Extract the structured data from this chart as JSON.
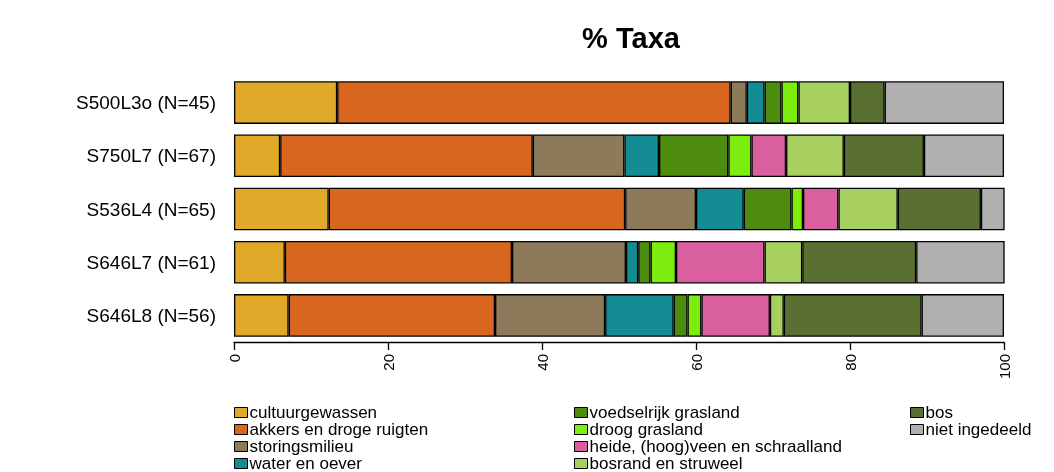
{
  "chart_data": {
    "type": "bar",
    "orientation": "horizontal",
    "stacked": true,
    "title": "% Taxa",
    "categories": [
      "S500L3o (N=45)",
      "S750L7 (N=67)",
      "S536L4 (N=65)",
      "S646L7 (N=61)",
      "S646L8 (N=56)"
    ],
    "series": [
      {
        "name": "cultuurgewassen",
        "color": "#e0a92a",
        "values": [
          13.4,
          6.0,
          12.3,
          6.6,
          7.1
        ]
      },
      {
        "name": "akkers en droge ruigten",
        "color": "#d9661f",
        "values": [
          51.1,
          32.8,
          38.5,
          29.5,
          26.8
        ]
      },
      {
        "name": "storingsmilieu",
        "color": "#8c7a5a",
        "values": [
          2.1,
          11.9,
          9.2,
          14.8,
          14.3
        ]
      },
      {
        "name": "water en oever",
        "color": "#138c94",
        "values": [
          2.3,
          4.5,
          6.2,
          1.6,
          8.9
        ]
      },
      {
        "name": "voedselrijk grasland",
        "color": "#4e8c10",
        "values": [
          2.2,
          9.0,
          6.2,
          1.6,
          1.8
        ]
      },
      {
        "name": "droog grasland",
        "color": "#7ced0c",
        "values": [
          2.2,
          3.0,
          1.5,
          3.3,
          1.8
        ]
      },
      {
        "name": "heide, (hoog)veen en schraalland",
        "color": "#d95f9e",
        "values": [
          0,
          4.5,
          4.6,
          11.5,
          8.9
        ]
      },
      {
        "name": "bosrand en struweel",
        "color": "#a8d060",
        "values": [
          6.7,
          7.5,
          7.7,
          4.9,
          1.8
        ]
      },
      {
        "name": "bos",
        "color": "#5a7032",
        "values": [
          4.5,
          10.4,
          10.8,
          14.8,
          17.9
        ]
      },
      {
        "name": "niet ingedeeld",
        "color": "#b0b0b0",
        "values": [
          15.5,
          10.4,
          3.1,
          11.5,
          10.7
        ]
      }
    ],
    "xlim": [
      0,
      100
    ],
    "xticks": [
      0,
      20,
      40,
      60,
      80,
      100
    ],
    "grid": false,
    "legend": "bottom"
  }
}
